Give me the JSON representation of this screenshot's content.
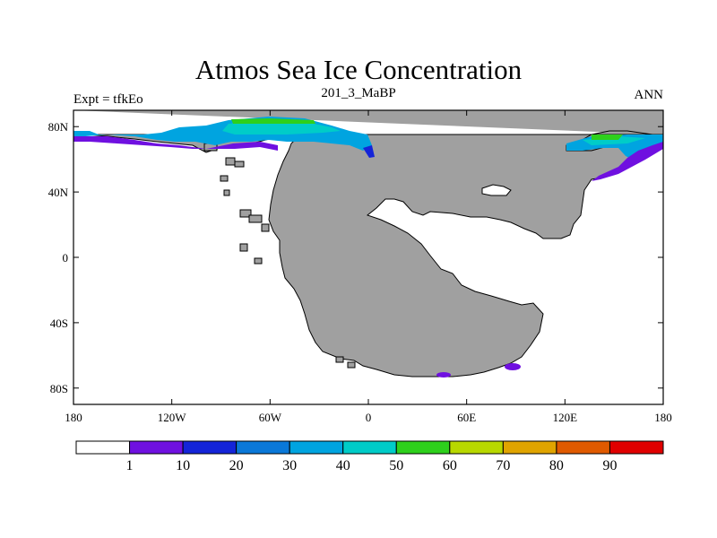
{
  "title": "Atmos Sea Ice Concentration",
  "subtitle": "201_3_MaBP",
  "left_label": "Expt = tfkEo",
  "right_label": "ANN",
  "colors": {
    "land": "#a0a0a0",
    "ocean": "#ffffff",
    "outline": "#000000"
  },
  "axes": {
    "x_ticks": [
      {
        "value": -180,
        "label": "180"
      },
      {
        "value": -120,
        "label": "120W"
      },
      {
        "value": -60,
        "label": "60W"
      },
      {
        "value": 0,
        "label": "0"
      },
      {
        "value": 60,
        "label": "60E"
      },
      {
        "value": 120,
        "label": "120E"
      },
      {
        "value": 180,
        "label": "180"
      }
    ],
    "y_ticks": [
      {
        "value": 80,
        "label": "80N"
      },
      {
        "value": 40,
        "label": "40N"
      },
      {
        "value": 0,
        "label": "0"
      },
      {
        "value": -40,
        "label": "40S"
      },
      {
        "value": -80,
        "label": "80S"
      }
    ]
  },
  "colorbar": {
    "colors": [
      "#ffffff",
      "#6f10e0",
      "#1424d8",
      "#0a78d8",
      "#00a4e0",
      "#00ccc8",
      "#2ed01c",
      "#b8d800",
      "#e0a400",
      "#e05a00",
      "#e00000"
    ],
    "labels": [
      "1",
      "10",
      "20",
      "30",
      "40",
      "50",
      "60",
      "70",
      "80",
      "90"
    ]
  }
}
